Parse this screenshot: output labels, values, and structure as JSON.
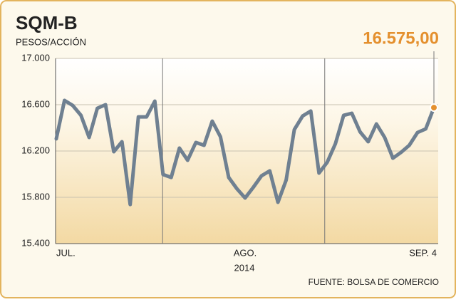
{
  "chart_data": {
    "type": "line",
    "title": "SQM-B",
    "subtitle": "PESOS/ACCIÓN",
    "source": "FUENTE: BOLSA DE COMERCIO",
    "xlabel": "2014",
    "categories": [
      "JUL.",
      null,
      null,
      null,
      null,
      null,
      null,
      null,
      null,
      null,
      null,
      null,
      null,
      null,
      null,
      null,
      null,
      null,
      null,
      null,
      null,
      null,
      null,
      "AGO.",
      null,
      null,
      null,
      null,
      null,
      null,
      null,
      null,
      null,
      null,
      null,
      null,
      null,
      null,
      null,
      null,
      null,
      null,
      null,
      null,
      null,
      null,
      "SEP. 4"
    ],
    "values": [
      16305,
      16637,
      16594,
      16508,
      16317,
      16569,
      16600,
      16194,
      16280,
      15738,
      16495,
      16495,
      16631,
      15997,
      15972,
      16225,
      16120,
      16274,
      16249,
      16458,
      16323,
      15972,
      15874,
      15794,
      15886,
      15985,
      16028,
      15757,
      15948,
      16385,
      16502,
      16545,
      16009,
      16102,
      16262,
      16508,
      16526,
      16366,
      16280,
      16434,
      16317,
      16138,
      16188,
      16249,
      16360,
      16391,
      16575
    ],
    "value_labels": [
      null,
      null,
      null,
      null,
      null,
      null,
      null,
      null,
      null,
      null,
      null,
      null,
      null,
      null,
      null,
      null,
      null,
      null,
      null,
      null,
      null,
      null,
      null,
      null,
      null,
      null,
      null,
      null,
      null,
      null,
      null,
      null,
      null,
      null,
      null,
      null,
      null,
      null,
      null,
      null,
      null,
      null,
      null,
      null,
      null,
      null,
      "16.575,00"
    ],
    "color": "#6f8091",
    "highlight_color": "#e4902e",
    "ylim": [
      15400,
      17000
    ],
    "yticks": [
      {
        "value": 15400,
        "label": "15.400"
      },
      {
        "value": 15800,
        "label": "15.800"
      },
      {
        "value": 16200,
        "label": "16.200"
      },
      {
        "value": 16600,
        "label": "16.600"
      },
      {
        "value": 17000,
        "label": "17.000"
      }
    ],
    "grid": true
  }
}
